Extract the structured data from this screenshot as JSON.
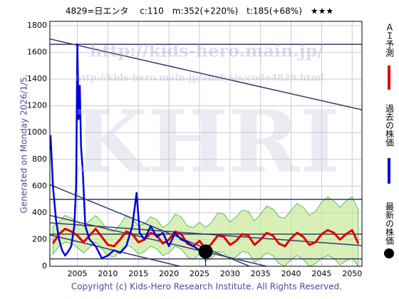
{
  "chart_data": {
    "type": "line",
    "title": "4829=日エンタ　 c:110　m:352(+220%)　t:185(+68%)　★★★",
    "annotation": "Generated on Monday 2026/1/5.",
    "footer": "Copyright (c) Kids-Hero Research Institute. All Rights Reserved.",
    "watermarks": [
      "http://kids-hero.main.jp/",
      "http://kids-hero.main.jp/analysis/code4829.html",
      "KHRI"
    ],
    "xlim": [
      2000.5,
      2051.6
    ],
    "ylim": [
      0,
      1832
    ],
    "xticks": [
      2005,
      2010,
      2015,
      2020,
      2025,
      2030,
      2035,
      2040,
      2045,
      2050
    ],
    "yticks": [
      0,
      200,
      400,
      600,
      800,
      1000,
      1200,
      1400,
      1600,
      1800
    ],
    "grid": true,
    "band": {
      "color": "#c8e89a",
      "x": [
        2001,
        2002,
        2003,
        2004,
        2005,
        2006,
        2007,
        2008,
        2009,
        2010,
        2011,
        2012,
        2013,
        2014,
        2015,
        2016,
        2017,
        2018,
        2019,
        2020,
        2021,
        2022,
        2023,
        2024,
        2025,
        2026,
        2027,
        2028,
        2029,
        2030,
        2031,
        2032,
        2033,
        2034,
        2035,
        2036,
        2037,
        2038,
        2039,
        2040,
        2041,
        2042,
        2043,
        2044,
        2045,
        2046,
        2047,
        2048,
        2049,
        2050,
        2051
      ],
      "upper": [
        300,
        330,
        380,
        360,
        330,
        300,
        340,
        380,
        330,
        270,
        260,
        310,
        380,
        360,
        300,
        320,
        370,
        350,
        290,
        320,
        390,
        370,
        300,
        290,
        330,
        290,
        330,
        400,
        390,
        330,
        370,
        420,
        410,
        340,
        390,
        450,
        430,
        370,
        360,
        420,
        470,
        440,
        380,
        410,
        480,
        520,
        490,
        440,
        490,
        520,
        420
      ],
      "lower": [
        90,
        150,
        180,
        170,
        140,
        100,
        140,
        180,
        130,
        80,
        70,
        110,
        160,
        140,
        90,
        110,
        150,
        130,
        80,
        100,
        150,
        130,
        70,
        50,
        90,
        40,
        60,
        110,
        100,
        50,
        70,
        110,
        100,
        30,
        60,
        100,
        80,
        20,
        0,
        50,
        80,
        50,
        0,
        20,
        60,
        80,
        60,
        10,
        40,
        60,
        0
      ]
    },
    "series": [
      {
        "name": "ＡＩ予測",
        "color": "#e00000",
        "x": [
          2001,
          2002,
          2003,
          2004,
          2005,
          2006,
          2007,
          2008,
          2009,
          2010,
          2011,
          2012,
          2013,
          2014,
          2015,
          2016,
          2017,
          2018,
          2019,
          2020,
          2021,
          2022,
          2023,
          2024,
          2025,
          2026,
          2027,
          2028,
          2029,
          2030,
          2031,
          2032,
          2033,
          2034,
          2035,
          2036,
          2037,
          2038,
          2039,
          2040,
          2041,
          2042,
          2043,
          2044,
          2045,
          2046,
          2047,
          2048,
          2049,
          2050,
          2051
        ],
        "values": [
          170,
          240,
          280,
          260,
          230,
          180,
          230,
          280,
          220,
          160,
          150,
          200,
          260,
          240,
          180,
          200,
          250,
          230,
          170,
          200,
          260,
          240,
          170,
          150,
          190,
          130,
          170,
          230,
          220,
          160,
          190,
          240,
          230,
          160,
          200,
          250,
          230,
          170,
          150,
          210,
          250,
          220,
          160,
          180,
          240,
          270,
          250,
          200,
          240,
          270,
          170
        ]
      },
      {
        "name": "過去の株価",
        "color": "#0000dd",
        "x": [
          2000.6,
          2000.8,
          2001.0,
          2001.5,
          2002.0,
          2002.5,
          2003.0,
          2003.5,
          2004.0,
          2004.5,
          2004.8,
          2005.0,
          2005.2,
          2005.4,
          2005.6,
          2005.9,
          2006.3,
          2007.0,
          2008.0,
          2009.0,
          2010.0,
          2011.0,
          2012.0,
          2013.0,
          2014.0,
          2014.7,
          2015.2,
          2016.0,
          2017.0,
          2018.0,
          2019.0,
          2020.0,
          2021.0,
          2022.0,
          2023.0,
          2024.0,
          2025.0,
          2026.0
        ],
        "values": [
          980,
          800,
          600,
          350,
          200,
          120,
          80,
          110,
          150,
          300,
          600,
          1660,
          1100,
          1350,
          900,
          700,
          300,
          200,
          150,
          60,
          80,
          120,
          100,
          150,
          300,
          550,
          250,
          200,
          300,
          220,
          250,
          150,
          250,
          200,
          180,
          150,
          120,
          110
        ]
      }
    ],
    "latest": {
      "name": "最新の株価",
      "x": 2026,
      "value": 110,
      "color": "#000000"
    },
    "trend_lines": [
      {
        "x": [
          2000.5,
          2051.6
        ],
        "y": [
          1700,
          1170
        ]
      },
      {
        "x": [
          2000.5,
          2051.6
        ],
        "y": [
          610,
          -343
        ]
      },
      {
        "x": [
          2000.5,
          2051.6
        ],
        "y": [
          380,
          -167
        ]
      },
      {
        "x": [
          2000.5,
          2051.6
        ],
        "y": [
          325,
          155
        ]
      },
      {
        "x": [
          2000.5,
          2051.6
        ],
        "y": [
          235,
          -330
        ]
      }
    ],
    "hlines": [
      1660,
      500,
      240,
      55
    ],
    "line_color": "#3a3a6a"
  }
}
